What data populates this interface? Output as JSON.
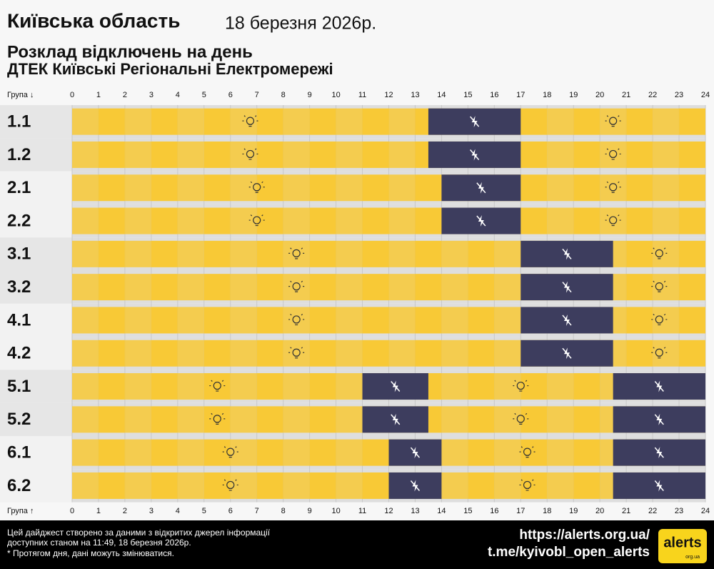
{
  "chart_data": {
    "type": "timeline",
    "title": "Київська область",
    "date": "18 березня 2026р.",
    "subtitle": "Розклад відключень на день",
    "provider": "ДТЕК Київські Регіональні Електромережі",
    "axis_label_top": "Група ↓",
    "axis_label_bottom": "Група ↑",
    "xlim": [
      0,
      24
    ],
    "xticks": [
      0,
      1,
      2,
      3,
      4,
      5,
      6,
      7,
      8,
      9,
      10,
      11,
      12,
      13,
      14,
      15,
      16,
      17,
      18,
      19,
      20,
      21,
      22,
      23,
      24
    ],
    "on_color": "#f8c936",
    "off_color": "#3d3d5e",
    "rows": [
      {
        "name": "1.1",
        "outages": [
          [
            13.5,
            17
          ]
        ]
      },
      {
        "name": "1.2",
        "outages": [
          [
            13.5,
            17
          ]
        ]
      },
      {
        "name": "2.1",
        "outages": [
          [
            14,
            17
          ]
        ]
      },
      {
        "name": "2.2",
        "outages": [
          [
            14,
            17
          ]
        ]
      },
      {
        "name": "3.1",
        "outages": [
          [
            17,
            20.5
          ]
        ]
      },
      {
        "name": "3.2",
        "outages": [
          [
            17,
            20.5
          ]
        ]
      },
      {
        "name": "4.1",
        "outages": [
          [
            17,
            20.5
          ]
        ]
      },
      {
        "name": "4.2",
        "outages": [
          [
            17,
            20.5
          ]
        ]
      },
      {
        "name": "5.1",
        "outages": [
          [
            11,
            13.5
          ],
          [
            20.5,
            24
          ]
        ]
      },
      {
        "name": "5.2",
        "outages": [
          [
            11,
            13.5
          ],
          [
            20.5,
            24
          ]
        ]
      },
      {
        "name": "6.1",
        "outages": [
          [
            12,
            14
          ],
          [
            20.5,
            24
          ]
        ]
      },
      {
        "name": "6.2",
        "outages": [
          [
            12,
            14
          ],
          [
            20.5,
            24
          ]
        ]
      }
    ]
  },
  "footer": {
    "lines": [
      "Цей дайджест створено за даними з відкритих джерел інформації",
      "доступних станом на 11:49, 18 березня 2026р.",
      "* Протягом дня, дані можуть змінюватися."
    ],
    "links": [
      "https://alerts.org.ua/",
      "t.me/kyivobl_open_alerts"
    ],
    "logo": "alerts",
    "logo_sub": "org.ua"
  }
}
